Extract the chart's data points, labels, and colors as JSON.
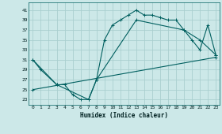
{
  "title": "",
  "xlabel": "Humidex (Indice chaleur)",
  "background_color": "#cce8e8",
  "grid_color": "#aacfcf",
  "line_color": "#005f5f",
  "xlim": [
    -0.5,
    23.5
  ],
  "ylim": [
    22,
    42.5
  ],
  "yticks": [
    23,
    25,
    27,
    29,
    31,
    33,
    35,
    37,
    39,
    41
  ],
  "xticks": [
    0,
    1,
    2,
    3,
    4,
    5,
    6,
    7,
    8,
    9,
    10,
    11,
    12,
    13,
    14,
    15,
    16,
    17,
    18,
    19,
    20,
    21,
    22,
    23
  ],
  "line1_x": [
    0,
    1,
    3,
    4,
    5,
    6,
    7,
    8,
    9,
    10,
    11,
    12,
    13,
    14,
    15,
    16,
    17,
    18,
    19,
    20,
    21,
    22,
    23
  ],
  "line1_y": [
    31,
    29,
    26,
    26,
    24,
    23,
    23,
    27,
    35,
    38,
    39,
    40,
    41,
    40,
    40,
    39.5,
    39,
    39,
    37,
    35,
    33,
    38,
    32
  ],
  "line2_x": [
    0,
    3,
    7,
    8,
    13,
    19,
    21,
    23
  ],
  "line2_y": [
    31,
    26,
    23,
    27,
    39,
    37,
    35,
    32
  ],
  "line3_x": [
    0,
    23
  ],
  "line3_y": [
    25,
    31.5
  ]
}
